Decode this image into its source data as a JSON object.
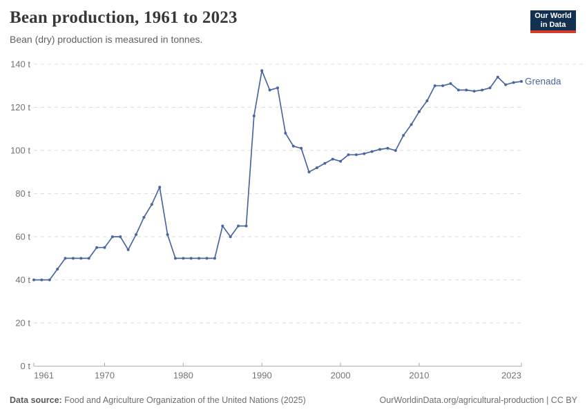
{
  "header": {
    "title": "Bean production, 1961 to 2023",
    "subtitle": "Bean (dry) production is measured in tonnes.",
    "logo": {
      "line1": "Our World",
      "line2": "in Data",
      "bg_color": "#12304f",
      "accent_color": "#d43b29"
    }
  },
  "chart_data": {
    "type": "line",
    "title": "Bean production, 1961 to 2023",
    "subtitle": "Bean (dry) production is measured in tonnes.",
    "xlabel": "",
    "ylabel": "",
    "ylim": [
      0,
      140
    ],
    "yticks": [
      0,
      20,
      40,
      60,
      80,
      100,
      120,
      140
    ],
    "ytick_suffix": " t",
    "xticks": [
      1961,
      1970,
      1980,
      1990,
      2000,
      2010,
      2023
    ],
    "x_range": [
      1961,
      2023
    ],
    "grid": "horizontal-dashed",
    "legend_position": "end-of-line-label",
    "style": {
      "grid_color": "#dcdcdc",
      "axis_color": "#a9a9a9",
      "tick_label_color": "#737373"
    },
    "series": [
      {
        "name": "Grenada",
        "color": "#4a66a0",
        "x": [
          1961,
          1962,
          1963,
          1964,
          1965,
          1966,
          1967,
          1968,
          1969,
          1970,
          1971,
          1972,
          1973,
          1974,
          1975,
          1976,
          1977,
          1978,
          1979,
          1980,
          1981,
          1982,
          1983,
          1984,
          1985,
          1986,
          1987,
          1988,
          1989,
          1990,
          1991,
          1992,
          1993,
          1994,
          1995,
          1996,
          1997,
          1998,
          1999,
          2000,
          2001,
          2002,
          2003,
          2004,
          2005,
          2006,
          2007,
          2008,
          2009,
          2010,
          2011,
          2012,
          2013,
          2014,
          2015,
          2016,
          2017,
          2018,
          2019,
          2020,
          2021,
          2022,
          2023
        ],
        "values": [
          40,
          40,
          40,
          45,
          50,
          50,
          50,
          50,
          55,
          55,
          60,
          60,
          54,
          61,
          69,
          75,
          83,
          61,
          50,
          50,
          50,
          50,
          50,
          50,
          65,
          60,
          65,
          65,
          116,
          137,
          128,
          129,
          108,
          102,
          101,
          90,
          92,
          94,
          96,
          95,
          98,
          98,
          98.5,
          99.5,
          100.5,
          101,
          100,
          107,
          112,
          118,
          123,
          130,
          130,
          131,
          128,
          128,
          127.5,
          128,
          129,
          134,
          130.5,
          131.5,
          132
        ]
      }
    ]
  },
  "footer": {
    "source_label": "Data source:",
    "source_text": "Food and Agriculture Organization of the United Nations (2025)",
    "credit": "OurWorldinData.org/agricultural-production | CC BY"
  }
}
